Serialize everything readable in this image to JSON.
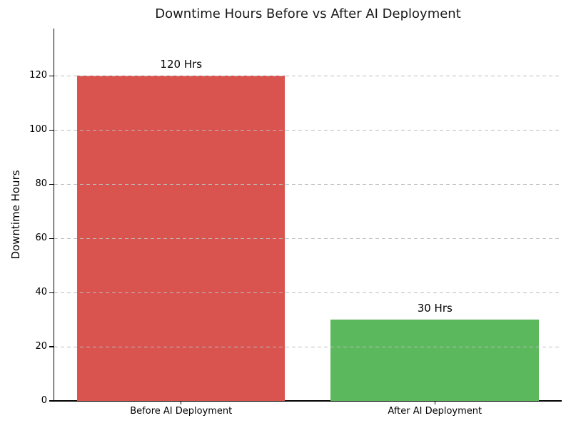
{
  "chart_data": {
    "type": "bar",
    "title": "Downtime Hours Before vs After AI Deployment",
    "xlabel": "",
    "ylabel": "Downtime Hours",
    "categories": [
      "Before AI Deployment",
      "After AI Deployment"
    ],
    "values": [
      120,
      30
    ],
    "bar_labels": [
      "120 Hrs",
      "30 Hrs"
    ],
    "bar_colors": [
      "#d9534f",
      "#5cb85c"
    ],
    "yticks": [
      0,
      20,
      40,
      60,
      80,
      100,
      120
    ],
    "ylim": [
      0,
      137.5
    ],
    "grid": "horizontal-dashed",
    "legend_position": "none"
  },
  "colors": {
    "bar_before": "#d9534f",
    "bar_after": "#5cb85c",
    "grid": "#bdbdbd",
    "spine": "#000000",
    "text": "#000000",
    "title": "#1a1a1a",
    "background": "#ffffff"
  }
}
